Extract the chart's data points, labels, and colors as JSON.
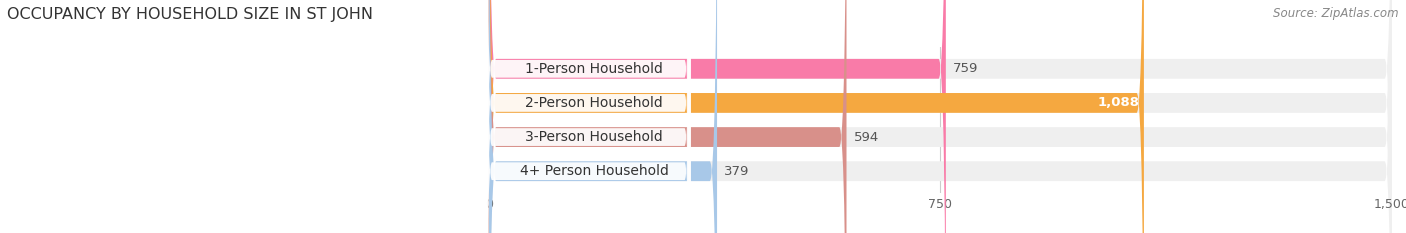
{
  "title": "OCCUPANCY BY HOUSEHOLD SIZE IN ST JOHN",
  "source": "Source: ZipAtlas.com",
  "categories": [
    "1-Person Household",
    "2-Person Household",
    "3-Person Household",
    "4+ Person Household"
  ],
  "values": [
    759,
    1088,
    594,
    379
  ],
  "bar_colors": [
    "#F97BA8",
    "#F5A840",
    "#D8908A",
    "#A8C8E8"
  ],
  "bar_bg_color": "#EFEFEF",
  "value_labels": [
    "759",
    "1,088",
    "594",
    "379"
  ],
  "xlim": [
    -380,
    1500
  ],
  "data_xlim": [
    0,
    1500
  ],
  "xticks": [
    0,
    750,
    1500
  ],
  "xtick_labels": [
    "0",
    "750",
    "1,500"
  ],
  "background_color": "#FFFFFF",
  "title_fontsize": 11.5,
  "label_fontsize": 10,
  "value_fontsize": 9.5,
  "source_fontsize": 8.5
}
